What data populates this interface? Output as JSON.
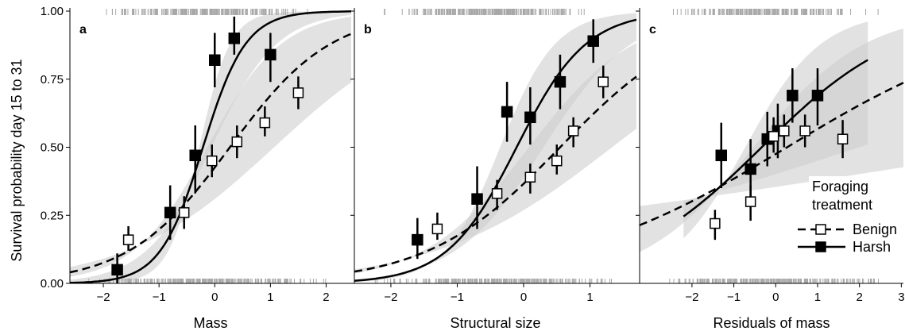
{
  "ylabel": "Survival probability day 15 to 31",
  "legend": {
    "title_line1": "Foraging",
    "title_line2": "treatment",
    "items": [
      {
        "label": "Benign",
        "marker": "open-square",
        "line": "dashed"
      },
      {
        "label": "Harsh",
        "marker": "filled-square",
        "line": "solid"
      }
    ],
    "placement": "bottom-right of panel c"
  },
  "colors": {
    "ci_band": "#cfcfcf",
    "rug": "#a8a8a8",
    "harsh": "#000000",
    "benign_fill": "#ffffff"
  },
  "chart_data": [
    {
      "type": "scatter",
      "panel": "a",
      "xlabel": "Mass",
      "xlim": [
        -2.6,
        2.45
      ],
      "ylim": [
        0,
        1
      ],
      "xticks": [
        "−2",
        "−1",
        "0",
        "1",
        "2"
      ],
      "xtick_values": [
        -2,
        -1,
        0,
        1,
        2
      ],
      "yticks": [
        "0.00",
        "0.25",
        "0.50",
        "0.75",
        "1.00"
      ],
      "ytick_values": [
        0,
        0.25,
        0.5,
        0.75,
        1
      ],
      "series": [
        {
          "name": "Harsh",
          "curve": "solid",
          "logit": [
            0.55,
            2.6
          ],
          "points": [
            {
              "x": -1.75,
              "y": 0.05,
              "lo": 0.0,
              "hi": 0.11
            },
            {
              "x": -0.8,
              "y": 0.26,
              "lo": 0.16,
              "hi": 0.36
            },
            {
              "x": -0.35,
              "y": 0.47,
              "lo": 0.33,
              "hi": 0.58
            },
            {
              "x": 0.0,
              "y": 0.82,
              "lo": 0.72,
              "hi": 0.92
            },
            {
              "x": 0.35,
              "y": 0.9,
              "lo": 0.84,
              "hi": 0.98
            },
            {
              "x": 1.0,
              "y": 0.84,
              "lo": 0.74,
              "hi": 0.92
            }
          ]
        },
        {
          "name": "Benign",
          "curve": "dashed",
          "logit": [
            -0.3,
            1.1
          ],
          "points": [
            {
              "x": -1.55,
              "y": 0.16,
              "lo": 0.12,
              "hi": 0.21
            },
            {
              "x": -0.55,
              "y": 0.26,
              "lo": 0.2,
              "hi": 0.32
            },
            {
              "x": -0.05,
              "y": 0.45,
              "lo": 0.39,
              "hi": 0.51
            },
            {
              "x": 0.4,
              "y": 0.52,
              "lo": 0.46,
              "hi": 0.58
            },
            {
              "x": 0.9,
              "y": 0.59,
              "lo": 0.54,
              "hi": 0.65
            },
            {
              "x": 1.5,
              "y": 0.7,
              "lo": 0.64,
              "hi": 0.76
            }
          ]
        }
      ],
      "bands": [
        {
          "series": "Harsh",
          "lower_logit": [
            0.1,
            1.7
          ],
          "upper_logit": [
            1.0,
            3.6
          ]
        },
        {
          "series": "Benign",
          "lower_logit": [
            -0.8,
            0.75
          ],
          "upper_logit": [
            0.2,
            1.5
          ]
        }
      ],
      "rug": true
    },
    {
      "type": "scatter",
      "panel": "b",
      "xlabel": "Structural size",
      "xlim": [
        -2.55,
        1.7
      ],
      "ylim": [
        0,
        1
      ],
      "xticks": [
        "−2",
        "−1",
        "0",
        "1"
      ],
      "xtick_values": [
        -2,
        -1,
        0,
        1
      ],
      "series": [
        {
          "name": "Harsh",
          "curve": "solid",
          "logit": [
            0.2,
            1.9
          ],
          "points": [
            {
              "x": -1.6,
              "y": 0.16,
              "lo": 0.09,
              "hi": 0.24
            },
            {
              "x": -0.7,
              "y": 0.31,
              "lo": 0.2,
              "hi": 0.43
            },
            {
              "x": -0.25,
              "y": 0.63,
              "lo": 0.52,
              "hi": 0.74
            },
            {
              "x": 0.1,
              "y": 0.61,
              "lo": 0.51,
              "hi": 0.72
            },
            {
              "x": 0.55,
              "y": 0.74,
              "lo": 0.64,
              "hi": 0.84
            },
            {
              "x": 1.05,
              "y": 0.89,
              "lo": 0.81,
              "hi": 0.97
            }
          ]
        },
        {
          "name": "Benign",
          "curve": "dashed",
          "logit": [
            -0.55,
            1.0
          ],
          "points": [
            {
              "x": -1.3,
              "y": 0.2,
              "lo": 0.16,
              "hi": 0.26
            },
            {
              "x": -0.4,
              "y": 0.33,
              "lo": 0.27,
              "hi": 0.38
            },
            {
              "x": 0.1,
              "y": 0.39,
              "lo": 0.33,
              "hi": 0.44
            },
            {
              "x": 0.5,
              "y": 0.45,
              "lo": 0.4,
              "hi": 0.51
            },
            {
              "x": 0.75,
              "y": 0.56,
              "lo": 0.5,
              "hi": 0.61
            },
            {
              "x": 1.2,
              "y": 0.74,
              "lo": 0.68,
              "hi": 0.8
            }
          ]
        }
      ],
      "bands": [
        {
          "series": "Harsh",
          "lower_logit": [
            -0.45,
            1.5
          ],
          "upper_logit": [
            0.85,
            2.4
          ]
        },
        {
          "series": "Benign",
          "lower_logit": [
            -1.0,
            0.75
          ],
          "upper_logit": [
            -0.1,
            1.25
          ]
        }
      ],
      "rug": true
    },
    {
      "type": "scatter",
      "panel": "c",
      "xlabel": "Residuals of mass",
      "xlim": [
        -3.25,
        3.05
      ],
      "ylim": [
        0,
        1
      ],
      "xticks": [
        "−2",
        "−1",
        "0",
        "1",
        "2",
        "3"
      ],
      "xtick_values": [
        -2,
        -1,
        0,
        1,
        2,
        3
      ],
      "series": [
        {
          "name": "Harsh",
          "curve": "solid",
          "curve_range": [
            -2.2,
            2.2
          ],
          "logit": [
            0.2,
            0.6
          ],
          "points": [
            {
              "x": -1.3,
              "y": 0.47,
              "lo": 0.35,
              "hi": 0.59
            },
            {
              "x": -0.6,
              "y": 0.42,
              "lo": 0.3,
              "hi": 0.53
            },
            {
              "x": -0.2,
              "y": 0.53,
              "lo": 0.43,
              "hi": 0.63
            },
            {
              "x": 0.05,
              "y": 0.56,
              "lo": 0.46,
              "hi": 0.66
            },
            {
              "x": 0.4,
              "y": 0.69,
              "lo": 0.59,
              "hi": 0.79
            },
            {
              "x": 1.0,
              "y": 0.69,
              "lo": 0.58,
              "hi": 0.79
            }
          ]
        },
        {
          "name": "Benign",
          "curve": "dashed",
          "curve_range": [
            -3.25,
            3.05
          ],
          "logit": [
            -0.1,
            0.37
          ],
          "points": [
            {
              "x": -1.45,
              "y": 0.22,
              "lo": 0.16,
              "hi": 0.27
            },
            {
              "x": -0.6,
              "y": 0.3,
              "lo": 0.23,
              "hi": 0.36
            },
            {
              "x": -0.05,
              "y": 0.54,
              "lo": 0.48,
              "hi": 0.61
            },
            {
              "x": 0.2,
              "y": 0.56,
              "lo": 0.5,
              "hi": 0.62
            },
            {
              "x": 0.7,
              "y": 0.56,
              "lo": 0.5,
              "hi": 0.62
            },
            {
              "x": 1.6,
              "y": 0.53,
              "lo": 0.46,
              "hi": 0.6
            }
          ]
        }
      ],
      "bands": [
        {
          "series": "Harsh",
          "range": [
            -2.2,
            2.2
          ],
          "lower_logit": [
            -0.4,
            0.2
          ],
          "upper_logit": [
            0.8,
            1.1
          ]
        },
        {
          "series": "Benign",
          "range": [
            -3.25,
            3.05
          ],
          "lower_logit": [
            -0.6,
            0.1
          ],
          "upper_logit": [
            0.4,
            0.75
          ]
        }
      ],
      "rug": true
    }
  ]
}
